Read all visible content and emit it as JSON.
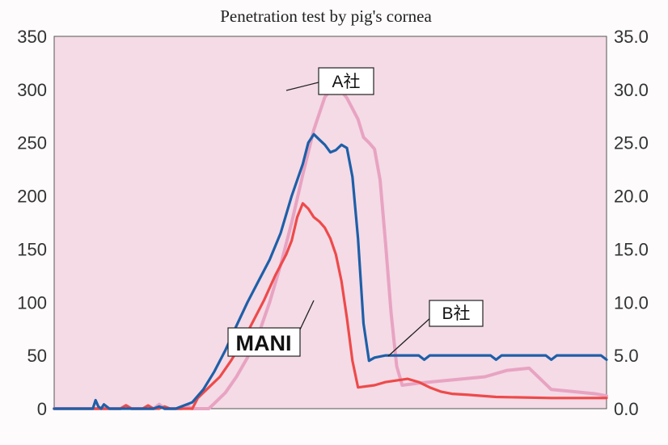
{
  "chart_data": {
    "type": "line",
    "title": "Penetration test by pig's cornea",
    "plot_background": "#f4dbe6",
    "x_range": [
      0,
      100
    ],
    "y_left": {
      "range": [
        0,
        350
      ],
      "ticks": [
        "0",
        "50",
        "100",
        "150",
        "200",
        "250",
        "300",
        "350"
      ]
    },
    "y_right": {
      "range": [
        0,
        35
      ],
      "ticks": [
        "0.0",
        "5.0",
        "10.0",
        "15.0",
        "20.0",
        "25.0",
        "30.0",
        "35.0"
      ]
    },
    "grid": false,
    "legend": "callouts",
    "series": [
      {
        "name": "A社",
        "color": "#e8a3c2",
        "points": [
          [
            0,
            0
          ],
          [
            12,
            0
          ],
          [
            13,
            3
          ],
          [
            14,
            0
          ],
          [
            18,
            0
          ],
          [
            19,
            4
          ],
          [
            20,
            0
          ],
          [
            23,
            0
          ],
          [
            24,
            3
          ],
          [
            25,
            0
          ],
          [
            28,
            0
          ],
          [
            29,
            5
          ],
          [
            31,
            15
          ],
          [
            33,
            30
          ],
          [
            35,
            48
          ],
          [
            37,
            70
          ],
          [
            39,
            100
          ],
          [
            41,
            135
          ],
          [
            43,
            175
          ],
          [
            45,
            220
          ],
          [
            47,
            262
          ],
          [
            49,
            293
          ],
          [
            51,
            305
          ],
          [
            53,
            292
          ],
          [
            55,
            272
          ],
          [
            56,
            255
          ],
          [
            57,
            250
          ],
          [
            58,
            244
          ],
          [
            59,
            215
          ],
          [
            60,
            155
          ],
          [
            61,
            90
          ],
          [
            62,
            40
          ],
          [
            63,
            22
          ],
          [
            66,
            24
          ],
          [
            70,
            26
          ],
          [
            74,
            28
          ],
          [
            78,
            30
          ],
          [
            82,
            36
          ],
          [
            86,
            38
          ],
          [
            88,
            28
          ],
          [
            90,
            18
          ],
          [
            94,
            16
          ],
          [
            98,
            14
          ],
          [
            100,
            12
          ]
        ]
      },
      {
        "name": "B社",
        "color": "#1e5fa8",
        "points": [
          [
            0,
            0
          ],
          [
            7,
            0
          ],
          [
            7.5,
            8
          ],
          [
            8,
            2
          ],
          [
            8.5,
            0
          ],
          [
            9,
            4
          ],
          [
            10,
            0
          ],
          [
            18,
            0
          ],
          [
            19,
            2
          ],
          [
            20,
            0
          ],
          [
            22,
            0
          ],
          [
            25,
            6
          ],
          [
            27,
            18
          ],
          [
            29,
            35
          ],
          [
            31,
            55
          ],
          [
            33,
            78
          ],
          [
            35,
            100
          ],
          [
            37,
            120
          ],
          [
            39,
            140
          ],
          [
            41,
            165
          ],
          [
            43,
            200
          ],
          [
            45,
            230
          ],
          [
            46,
            250
          ],
          [
            47,
            258
          ],
          [
            48,
            253
          ],
          [
            49,
            248
          ],
          [
            50,
            241
          ],
          [
            51,
            243
          ],
          [
            52,
            248
          ],
          [
            53,
            245
          ],
          [
            54,
            218
          ],
          [
            55,
            160
          ],
          [
            56,
            80
          ],
          [
            57,
            45
          ],
          [
            58,
            48
          ],
          [
            60,
            50
          ],
          [
            66,
            50
          ],
          [
            67,
            46
          ],
          [
            68,
            50
          ],
          [
            79,
            50
          ],
          [
            80,
            46
          ],
          [
            81,
            50
          ],
          [
            89,
            50
          ],
          [
            90,
            46
          ],
          [
            91,
            50
          ],
          [
            99,
            50
          ],
          [
            100,
            46
          ]
        ]
      },
      {
        "name": "MANI",
        "color": "#ee4a4a",
        "points": [
          [
            0,
            0
          ],
          [
            12,
            0
          ],
          [
            13,
            3
          ],
          [
            14,
            0
          ],
          [
            16,
            0
          ],
          [
            17,
            3
          ],
          [
            18,
            0
          ],
          [
            19,
            0
          ],
          [
            20,
            2
          ],
          [
            21,
            0
          ],
          [
            25,
            0
          ],
          [
            26,
            10
          ],
          [
            28,
            20
          ],
          [
            30,
            30
          ],
          [
            32,
            45
          ],
          [
            34,
            62
          ],
          [
            36,
            82
          ],
          [
            38,
            102
          ],
          [
            40,
            125
          ],
          [
            42,
            145
          ],
          [
            43,
            158
          ],
          [
            44,
            180
          ],
          [
            45,
            193
          ],
          [
            46,
            188
          ],
          [
            47,
            180
          ],
          [
            48,
            176
          ],
          [
            49,
            170
          ],
          [
            50,
            160
          ],
          [
            51,
            145
          ],
          [
            52,
            120
          ],
          [
            53,
            85
          ],
          [
            54,
            45
          ],
          [
            55,
            20
          ],
          [
            58,
            22
          ],
          [
            60,
            25
          ],
          [
            64,
            28
          ],
          [
            66,
            25
          ],
          [
            68,
            20
          ],
          [
            70,
            16
          ],
          [
            72,
            14
          ],
          [
            75,
            13
          ],
          [
            80,
            11
          ],
          [
            90,
            10
          ],
          [
            100,
            10
          ]
        ]
      }
    ],
    "labels": {
      "a": "A社",
      "b": "B社",
      "mani": "MANI"
    }
  }
}
